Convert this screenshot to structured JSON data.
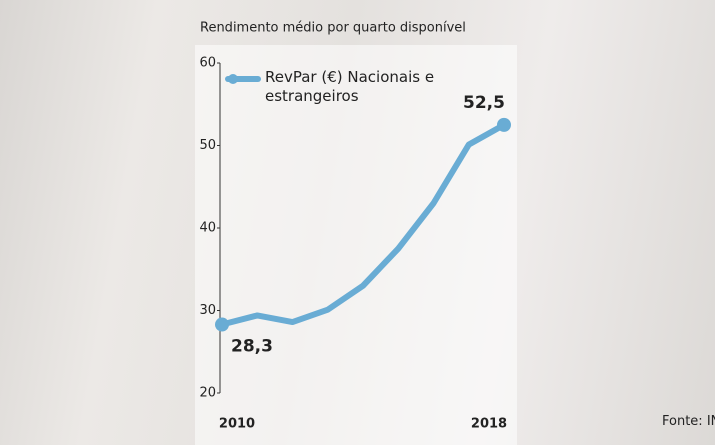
{
  "source": "Fonte: INE",
  "chart_data": {
    "type": "line",
    "title": "Rendimento médio por quarto disponível",
    "x": [
      2010,
      2011,
      2012,
      2013,
      2014,
      2015,
      2016,
      2017,
      2018
    ],
    "xlim": [
      2010,
      2018
    ],
    "xticks": [
      2010,
      2018
    ],
    "ylim": [
      20,
      60
    ],
    "yticks": [
      20,
      30,
      40,
      50,
      60
    ],
    "series": [
      {
        "name": "RevPar (€) Nacionais e estrangeiros",
        "color": "#69acd4",
        "values": [
          28.3,
          29.4,
          28.6,
          30.1,
          33.0,
          37.5,
          43.0,
          50.1,
          52.5
        ],
        "value_labels": [
          "28,3",
          null,
          null,
          null,
          null,
          null,
          null,
          null,
          "52,5"
        ]
      }
    ]
  }
}
